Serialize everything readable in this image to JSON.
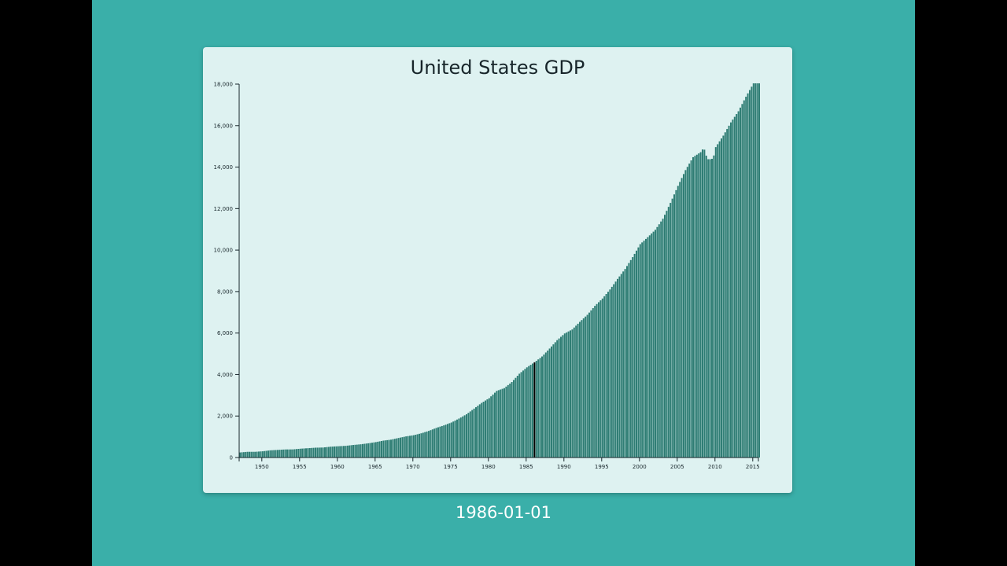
{
  "title": "United States GDP",
  "selected_date": "1986-01-01",
  "colors": {
    "page_bg": "#3aafa9",
    "side_bg": "#000000",
    "card_bg": "#def2f1",
    "bar": "#2f7d74",
    "bar_edge": "#5aa59c",
    "highlight": "#000000",
    "axis": "#17252a"
  },
  "chart_data": {
    "type": "bar",
    "title": "United States GDP",
    "xlabel": "",
    "ylabel": "",
    "ylim": [
      0,
      18000
    ],
    "xlim": [
      1947,
      2015.75
    ],
    "grid": false,
    "legend": null,
    "y_ticks": [
      0,
      2000,
      4000,
      6000,
      8000,
      10000,
      12000,
      14000,
      16000,
      18000
    ],
    "y_tick_labels": [
      "0",
      "2,000",
      "4,000",
      "6,000",
      "8,000",
      "10,000",
      "12,000",
      "14,000",
      "16,000",
      "18,000"
    ],
    "x_ticks": [
      1950,
      1955,
      1960,
      1965,
      1970,
      1975,
      1980,
      1985,
      1990,
      1995,
      2000,
      2005,
      2010,
      2015
    ],
    "x_tick_labels": [
      "1950",
      "1955",
      "1960",
      "1965",
      "1970",
      "1975",
      "1980",
      "1985",
      "1990",
      "1995",
      "2000",
      "2005",
      "2010",
      "2015"
    ],
    "frequency": "quarterly",
    "highlighted_bar": "1986-01-01",
    "annual_years": [
      1947,
      1948,
      1949,
      1950,
      1951,
      1952,
      1953,
      1954,
      1955,
      1956,
      1957,
      1958,
      1959,
      1960,
      1961,
      1962,
      1963,
      1964,
      1965,
      1966,
      1967,
      1968,
      1969,
      1970,
      1971,
      1972,
      1973,
      1974,
      1975,
      1976,
      1977,
      1978,
      1979,
      1980,
      1981,
      1982,
      1983,
      1984,
      1985,
      1986,
      1987,
      1988,
      1989,
      1990,
      1991,
      1992,
      1993,
      1994,
      1995,
      1996,
      1997,
      1998,
      1999,
      2000,
      2001,
      2002,
      2003,
      2004,
      2005,
      2006,
      2007,
      2008,
      2009,
      2010,
      2011,
      2012,
      2013,
      2014,
      2015
    ],
    "annual_values": [
      243,
      275,
      275,
      300,
      346,
      367,
      389,
      391,
      425,
      449,
      474,
      482,
      522,
      543,
      563,
      605,
      638,
      686,
      743,
      815,
      861,
      942,
      1019,
      1075,
      1167,
      1282,
      1428,
      1548,
      1688,
      1877,
      2086,
      2357,
      2632,
      2862,
      3211,
      3345,
      3638,
      4040,
      4346,
      4590,
      4870,
      5252,
      5657,
      5980,
      6174,
      6539,
      6879,
      7309,
      7664,
      8100,
      8609,
      9089,
      9661,
      10285,
      10622,
      10978,
      11511,
      12275,
      13094,
      13856,
      14478,
      14719,
      14419,
      14964,
      15518,
      16155,
      16692,
      17393,
      18037
    ]
  }
}
